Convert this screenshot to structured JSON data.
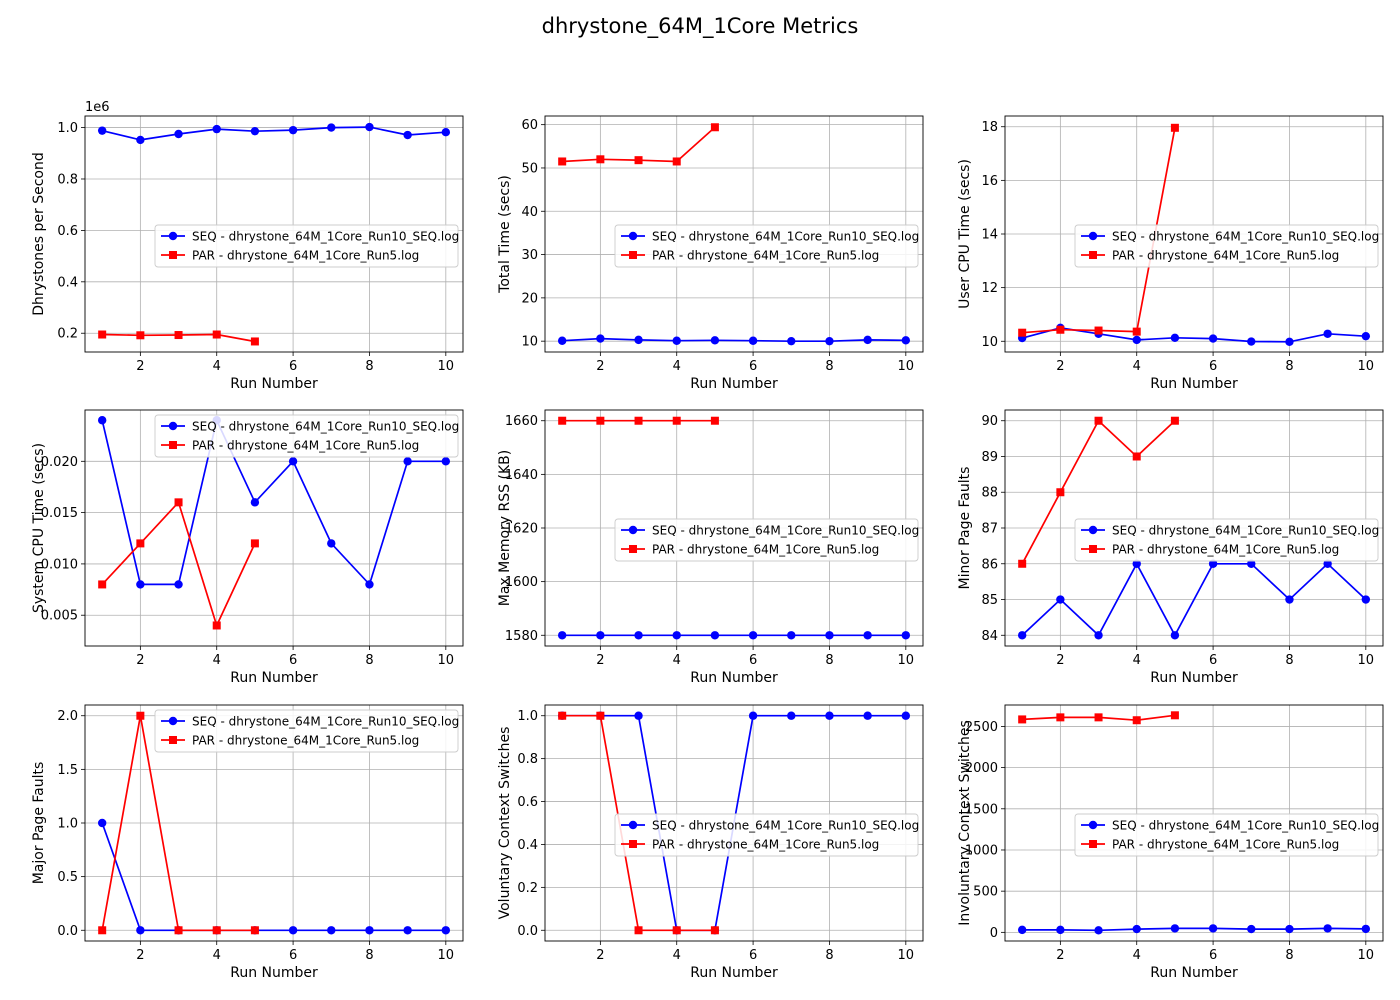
{
  "figure_title": "dhrystone_64M_1Core Metrics",
  "chart_data": [
    {
      "type": "line",
      "ylabel": "Dhrystones per Second",
      "xlabel": "Run Number",
      "offset_label": "1e6",
      "xlim": [
        0.55,
        10.45
      ],
      "ylim": [
        0.127,
        1.045
      ],
      "xticks": [
        2,
        4,
        6,
        8,
        10
      ],
      "yticks": [
        0.2,
        0.4,
        0.6,
        0.8,
        1.0
      ],
      "yticklabels": [
        "0.2",
        "0.4",
        "0.6",
        "0.8",
        "1.0"
      ],
      "grid": true,
      "legend_position": "center-right",
      "series": [
        {
          "name": "SEQ - dhrystone_64M_1Core_Run10_SEQ.log",
          "color": "#0000ff",
          "marker": "circle",
          "x": [
            1,
            2,
            3,
            4,
            5,
            6,
            7,
            8,
            9,
            10
          ],
          "y": [
            0.988,
            0.952,
            0.975,
            0.994,
            0.986,
            0.99,
            1.0,
            1.002,
            0.971,
            0.982
          ]
        },
        {
          "name": "PAR - dhrystone_64M_1Core_Run5.log",
          "color": "#ff0000",
          "marker": "square",
          "x": [
            1,
            2,
            3,
            4,
            5
          ],
          "y": [
            0.195,
            0.192,
            0.193,
            0.195,
            0.168
          ]
        }
      ]
    },
    {
      "type": "line",
      "ylabel": "Total Time (secs)",
      "xlabel": "Run Number",
      "xlim": [
        0.55,
        10.45
      ],
      "ylim": [
        7.5,
        62.0
      ],
      "xticks": [
        2,
        4,
        6,
        8,
        10
      ],
      "yticks": [
        10,
        20,
        30,
        40,
        50,
        60
      ],
      "yticklabels": [
        "10",
        "20",
        "30",
        "40",
        "50",
        "60"
      ],
      "grid": true,
      "legend_position": "center-right",
      "series": [
        {
          "name": "SEQ - dhrystone_64M_1Core_Run10_SEQ.log",
          "color": "#0000ff",
          "marker": "circle",
          "x": [
            1,
            2,
            3,
            4,
            5,
            6,
            7,
            8,
            9,
            10
          ],
          "y": [
            10.1,
            10.6,
            10.3,
            10.1,
            10.2,
            10.1,
            10.0,
            10.0,
            10.3,
            10.2
          ]
        },
        {
          "name": "PAR - dhrystone_64M_1Core_Run5.log",
          "color": "#ff0000",
          "marker": "square",
          "x": [
            1,
            2,
            3,
            4,
            5
          ],
          "y": [
            51.5,
            52.0,
            51.8,
            51.5,
            59.4
          ]
        }
      ]
    },
    {
      "type": "line",
      "ylabel": "User CPU Time (secs)",
      "xlabel": "Run Number",
      "xlim": [
        0.55,
        10.45
      ],
      "ylim": [
        9.6,
        18.4
      ],
      "xticks": [
        2,
        4,
        6,
        8,
        10
      ],
      "yticks": [
        10,
        12,
        14,
        16,
        18
      ],
      "yticklabels": [
        "10",
        "12",
        "14",
        "16",
        "18"
      ],
      "grid": true,
      "legend_position": "center-right",
      "series": [
        {
          "name": "SEQ - dhrystone_64M_1Core_Run10_SEQ.log",
          "color": "#0000ff",
          "marker": "circle",
          "x": [
            1,
            2,
            3,
            4,
            5,
            6,
            7,
            8,
            9,
            10
          ],
          "y": [
            10.12,
            10.5,
            10.28,
            10.05,
            10.13,
            10.1,
            9.99,
            9.98,
            10.28,
            10.19
          ]
        },
        {
          "name": "PAR - dhrystone_64M_1Core_Run5.log",
          "color": "#ff0000",
          "marker": "square",
          "x": [
            1,
            2,
            3,
            4,
            5
          ],
          "y": [
            10.32,
            10.43,
            10.4,
            10.36,
            17.96
          ]
        }
      ]
    },
    {
      "type": "line",
      "ylabel": "System CPU Time (secs)",
      "xlabel": "Run Number",
      "xlim": [
        0.55,
        10.45
      ],
      "ylim": [
        0.002,
        0.025
      ],
      "xticks": [
        2,
        4,
        6,
        8,
        10
      ],
      "yticks": [
        0.005,
        0.01,
        0.015,
        0.02
      ],
      "yticklabels": [
        "0.005",
        "0.010",
        "0.015",
        "0.020"
      ],
      "grid": true,
      "legend_position": "upper-right",
      "series": [
        {
          "name": "SEQ - dhrystone_64M_1Core_Run10_SEQ.log",
          "color": "#0000ff",
          "marker": "circle",
          "x": [
            1,
            2,
            3,
            4,
            5,
            6,
            7,
            8,
            9,
            10
          ],
          "y": [
            0.024,
            0.008,
            0.008,
            0.024,
            0.016,
            0.02,
            0.012,
            0.008,
            0.02,
            0.02
          ]
        },
        {
          "name": "PAR - dhrystone_64M_1Core_Run5.log",
          "color": "#ff0000",
          "marker": "square",
          "x": [
            1,
            2,
            3,
            4,
            5
          ],
          "y": [
            0.008,
            0.012,
            0.016,
            0.004,
            0.012
          ]
        }
      ]
    },
    {
      "type": "line",
      "ylabel": "Max Memory RSS (KB)",
      "xlabel": "Run Number",
      "xlim": [
        0.55,
        10.45
      ],
      "ylim": [
        1576.0,
        1664.0
      ],
      "xticks": [
        2,
        4,
        6,
        8,
        10
      ],
      "yticks": [
        1580,
        1600,
        1620,
        1640,
        1660
      ],
      "yticklabels": [
        "1580",
        "1600",
        "1620",
        "1640",
        "1660"
      ],
      "grid": true,
      "legend_position": "center-right",
      "series": [
        {
          "name": "SEQ - dhrystone_64M_1Core_Run10_SEQ.log",
          "color": "#0000ff",
          "marker": "circle",
          "x": [
            1,
            2,
            3,
            4,
            5,
            6,
            7,
            8,
            9,
            10
          ],
          "y": [
            1580,
            1580,
            1580,
            1580,
            1580,
            1580,
            1580,
            1580,
            1580,
            1580
          ]
        },
        {
          "name": "PAR - dhrystone_64M_1Core_Run5.log",
          "color": "#ff0000",
          "marker": "square",
          "x": [
            1,
            2,
            3,
            4,
            5
          ],
          "y": [
            1660,
            1660,
            1660,
            1660,
            1660
          ]
        }
      ]
    },
    {
      "type": "line",
      "ylabel": "Minor Page Faults",
      "xlabel": "Run Number",
      "xlim": [
        0.55,
        10.45
      ],
      "ylim": [
        83.7,
        90.3
      ],
      "xticks": [
        2,
        4,
        6,
        8,
        10
      ],
      "yticks": [
        84,
        85,
        86,
        87,
        88,
        89,
        90
      ],
      "yticklabels": [
        "84",
        "85",
        "86",
        "87",
        "88",
        "89",
        "90"
      ],
      "grid": true,
      "legend_position": "center-right",
      "series": [
        {
          "name": "SEQ - dhrystone_64M_1Core_Run10_SEQ.log",
          "color": "#0000ff",
          "marker": "circle",
          "x": [
            1,
            2,
            3,
            4,
            5,
            6,
            7,
            8,
            9,
            10
          ],
          "y": [
            84,
            85,
            84,
            86,
            84,
            86,
            86,
            85,
            86,
            85
          ]
        },
        {
          "name": "PAR - dhrystone_64M_1Core_Run5.log",
          "color": "#ff0000",
          "marker": "square",
          "x": [
            1,
            2,
            3,
            4,
            5
          ],
          "y": [
            86,
            88,
            90,
            89,
            90
          ]
        }
      ]
    },
    {
      "type": "line",
      "ylabel": "Major Page Faults",
      "xlabel": "Run Number",
      "xlim": [
        0.55,
        10.45
      ],
      "ylim": [
        -0.1,
        2.1
      ],
      "xticks": [
        2,
        4,
        6,
        8,
        10
      ],
      "yticks": [
        0.0,
        0.5,
        1.0,
        1.5,
        2.0
      ],
      "yticklabels": [
        "0.0",
        "0.5",
        "1.0",
        "1.5",
        "2.0"
      ],
      "grid": true,
      "legend_position": "upper-right",
      "series": [
        {
          "name": "SEQ - dhrystone_64M_1Core_Run10_SEQ.log",
          "color": "#0000ff",
          "marker": "circle",
          "x": [
            1,
            2,
            3,
            4,
            5,
            6,
            7,
            8,
            9,
            10
          ],
          "y": [
            1,
            0,
            0,
            0,
            0,
            0,
            0,
            0,
            0,
            0
          ]
        },
        {
          "name": "PAR - dhrystone_64M_1Core_Run5.log",
          "color": "#ff0000",
          "marker": "square",
          "x": [
            1,
            2,
            3,
            4,
            5
          ],
          "y": [
            0,
            2,
            0,
            0,
            0
          ]
        }
      ]
    },
    {
      "type": "line",
      "ylabel": "Voluntary Context Switches",
      "xlabel": "Run Number",
      "xlim": [
        0.55,
        10.45
      ],
      "ylim": [
        -0.05,
        1.05
      ],
      "xticks": [
        2,
        4,
        6,
        8,
        10
      ],
      "yticks": [
        0.0,
        0.2,
        0.4,
        0.6,
        0.8,
        1.0
      ],
      "yticklabels": [
        "0.0",
        "0.2",
        "0.4",
        "0.6",
        "0.8",
        "1.0"
      ],
      "grid": true,
      "legend_position": "center-right",
      "series": [
        {
          "name": "SEQ - dhrystone_64M_1Core_Run10_SEQ.log",
          "color": "#0000ff",
          "marker": "circle",
          "x": [
            1,
            2,
            3,
            4,
            5,
            6,
            7,
            8,
            9,
            10
          ],
          "y": [
            1,
            1,
            1,
            0,
            0,
            1,
            1,
            1,
            1,
            1
          ]
        },
        {
          "name": "PAR - dhrystone_64M_1Core_Run5.log",
          "color": "#ff0000",
          "marker": "square",
          "x": [
            1,
            2,
            3,
            4,
            5
          ],
          "y": [
            1,
            1,
            0,
            0,
            0
          ]
        }
      ]
    },
    {
      "type": "line",
      "ylabel": "Involuntary Context Switches",
      "xlabel": "Run Number",
      "xlim": [
        0.55,
        10.45
      ],
      "ylim": [
        -105,
        2760
      ],
      "xticks": [
        2,
        4,
        6,
        8,
        10
      ],
      "yticks": [
        0,
        500,
        1000,
        1500,
        2000,
        2500
      ],
      "yticklabels": [
        "0",
        "500",
        "1000",
        "1500",
        "2000",
        "2500"
      ],
      "grid": true,
      "legend_position": "center-right",
      "series": [
        {
          "name": "SEQ - dhrystone_64M_1Core_Run10_SEQ.log",
          "color": "#0000ff",
          "marker": "circle",
          "x": [
            1,
            2,
            3,
            4,
            5,
            6,
            7,
            8,
            9,
            10
          ],
          "y": [
            30,
            30,
            25,
            40,
            48,
            48,
            40,
            40,
            48,
            42
          ]
        },
        {
          "name": "PAR - dhrystone_64M_1Core_Run5.log",
          "color": "#ff0000",
          "marker": "square",
          "x": [
            1,
            2,
            3,
            4,
            5
          ],
          "y": [
            2585,
            2610,
            2610,
            2575,
            2635
          ]
        }
      ]
    }
  ]
}
